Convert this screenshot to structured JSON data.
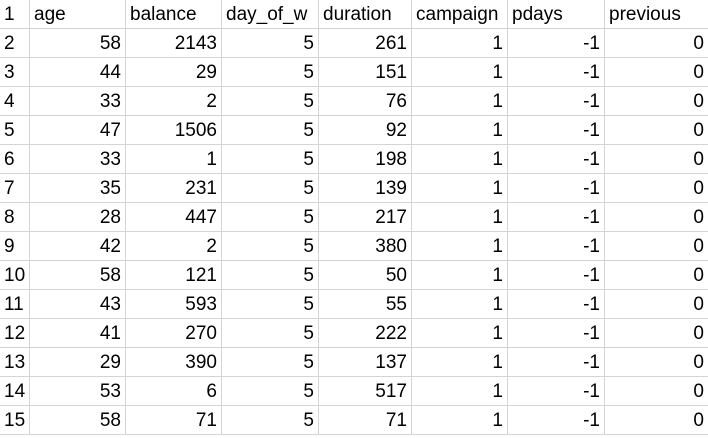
{
  "sheet": {
    "columns": [
      "age",
      "balance",
      "day_of_w",
      "duration",
      "campaign",
      "pdays",
      "previous"
    ],
    "header_row_number": "1",
    "rows": [
      {
        "n": "2",
        "cells": [
          "58",
          "2143",
          "5",
          "261",
          "1",
          "-1",
          "0"
        ]
      },
      {
        "n": "3",
        "cells": [
          "44",
          "29",
          "5",
          "151",
          "1",
          "-1",
          "0"
        ]
      },
      {
        "n": "4",
        "cells": [
          "33",
          "2",
          "5",
          "76",
          "1",
          "-1",
          "0"
        ]
      },
      {
        "n": "5",
        "cells": [
          "47",
          "1506",
          "5",
          "92",
          "1",
          "-1",
          "0"
        ]
      },
      {
        "n": "6",
        "cells": [
          "33",
          "1",
          "5",
          "198",
          "1",
          "-1",
          "0"
        ]
      },
      {
        "n": "7",
        "cells": [
          "35",
          "231",
          "5",
          "139",
          "1",
          "-1",
          "0"
        ]
      },
      {
        "n": "8",
        "cells": [
          "28",
          "447",
          "5",
          "217",
          "1",
          "-1",
          "0"
        ]
      },
      {
        "n": "9",
        "cells": [
          "42",
          "2",
          "5",
          "380",
          "1",
          "-1",
          "0"
        ]
      },
      {
        "n": "10",
        "cells": [
          "58",
          "121",
          "5",
          "50",
          "1",
          "-1",
          "0"
        ]
      },
      {
        "n": "11",
        "cells": [
          "43",
          "593",
          "5",
          "55",
          "1",
          "-1",
          "0"
        ]
      },
      {
        "n": "12",
        "cells": [
          "41",
          "270",
          "5",
          "222",
          "1",
          "-1",
          "0"
        ]
      },
      {
        "n": "13",
        "cells": [
          "29",
          "390",
          "5",
          "137",
          "1",
          "-1",
          "0"
        ]
      },
      {
        "n": "14",
        "cells": [
          "53",
          "6",
          "5",
          "517",
          "1",
          "-1",
          "0"
        ]
      },
      {
        "n": "15",
        "cells": [
          "58",
          "71",
          "5",
          "71",
          "1",
          "-1",
          "0"
        ]
      }
    ]
  }
}
